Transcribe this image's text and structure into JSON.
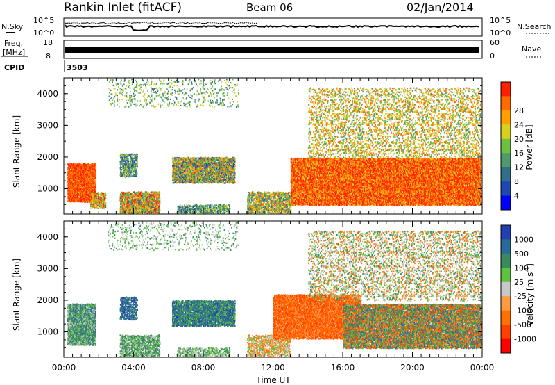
{
  "header": {
    "station": "Rankin Inlet (fitACF)",
    "beam": "Beam 06",
    "date": "02/Jan/2014"
  },
  "top_panels": {
    "nsky_label": "N.Sky",
    "nsearch_label": "N.Search",
    "left_ticks": [
      "10^5",
      "10^0"
    ],
    "right_ticks": [
      "10^5",
      "10^0"
    ],
    "freq_label_line1": "Freq.",
    "freq_label_line2": "[MHz]",
    "freq_ticks": [
      "18",
      "8"
    ],
    "nave_label": "Nave",
    "nave_ticks": [
      "60",
      "0"
    ],
    "cpid_label": "CPID",
    "cpid_value": "3503"
  },
  "colors": {
    "power_scale": [
      "#0000ff",
      "#1f47b0",
      "#2f6f8c",
      "#4f9a6a",
      "#70c040",
      "#d8d020",
      "#ffa000",
      "#ff6a00",
      "#ff2000"
    ],
    "velocity_scale": [
      "#ff0000",
      "#ff4000",
      "#ff7000",
      "#ff9a40",
      "#c8c8c8",
      "#60c040",
      "#3a8a60",
      "#2a6a9a",
      "#2040b0"
    ]
  },
  "chart_data": [
    {
      "type": "heatmap",
      "title": "Power",
      "ylabel": "Slant Range [km]",
      "yticks": [
        "1000",
        "2000",
        "3000",
        "4000"
      ],
      "ylim": [
        200,
        4500
      ],
      "colorbar_label": "Power [dB]",
      "colorbar_ticks": [
        "4",
        "8",
        "12",
        "16",
        "20",
        "24",
        "28"
      ],
      "clim": [
        0,
        32
      ]
    },
    {
      "type": "heatmap",
      "title": "Velocity",
      "ylabel": "Slant Range [km]",
      "yticks": [
        "1000",
        "2000",
        "3000",
        "4000"
      ],
      "ylim": [
        200,
        4500
      ],
      "xlabel": "Time UT",
      "xticks": [
        "00:00",
        "04:00",
        "08:00",
        "12:00",
        "16:00",
        "20:00",
        "00:00"
      ],
      "colorbar_label": "Velocity [m s",
      "colorbar_label_sup": "-1",
      "colorbar_label_end": "]",
      "colorbar_ticks": [
        "-1000",
        "-500",
        "-100",
        "-25",
        "25",
        "100",
        "500",
        "1000"
      ]
    }
  ]
}
